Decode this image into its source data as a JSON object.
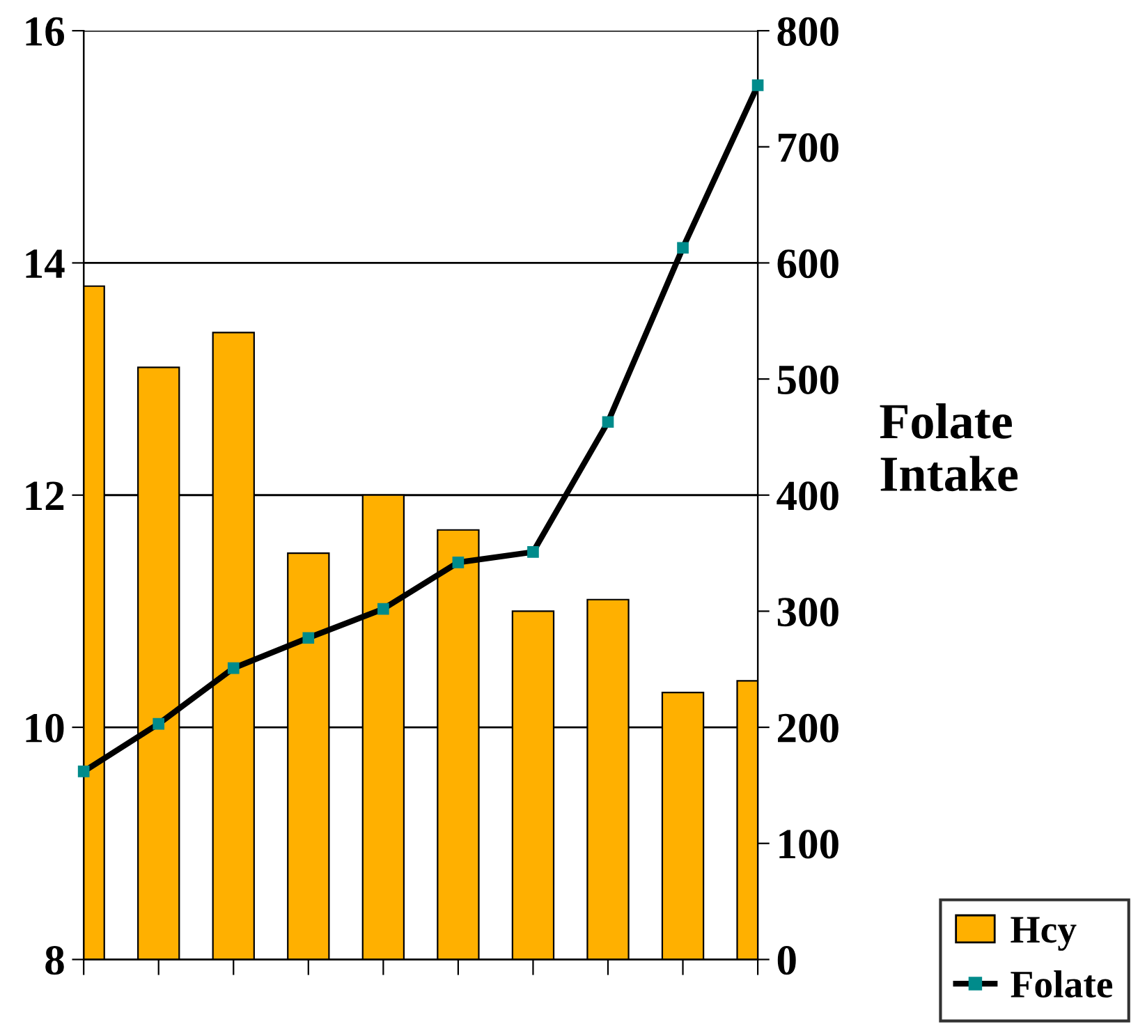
{
  "chart_data": {
    "type": "bar",
    "categories": [
      null,
      null,
      null,
      null,
      null,
      null,
      null,
      null,
      null,
      null
    ],
    "series": [
      {
        "name": "Hcy",
        "color": "#ffb000",
        "values": [
          13.8,
          13.1,
          13.4,
          11.5,
          12.0,
          11.7,
          11.0,
          11.1,
          10.3,
          10.4
        ]
      },
      {
        "name": "Folate",
        "type": "line",
        "axis": "y2",
        "color": "#000000",
        "marker": "square",
        "values": [
          162,
          203,
          251,
          277,
          302,
          342,
          351,
          463,
          613,
          753
        ]
      }
    ],
    "ylim": [
      8,
      16
    ],
    "yticks": [
      8,
      10,
      12,
      14,
      16
    ],
    "y2lim": [
      0,
      800
    ],
    "y2ticks": [
      0,
      100,
      200,
      300,
      400,
      500,
      600,
      700,
      800
    ],
    "y2label": "Folate\nIntake",
    "grid": "y",
    "legend": "bottom right",
    "tick_labels": "y"
  }
}
